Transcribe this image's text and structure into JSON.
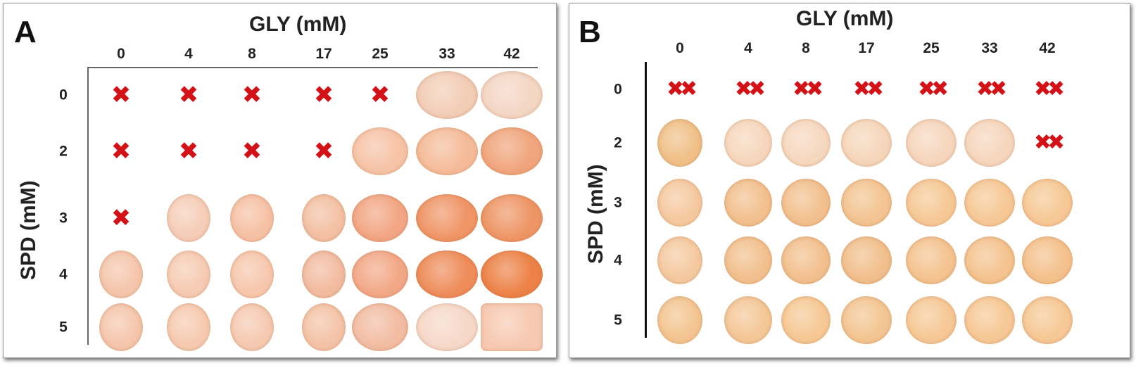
{
  "panels": [
    {
      "letter": "A",
      "x_title": "GLY (mM)",
      "y_title": "SPD (mM)",
      "gly": [
        "0",
        "4",
        "8",
        "17",
        "25",
        "33",
        "42"
      ],
      "spd": [
        "0",
        "2",
        "3",
        "4",
        "5"
      ],
      "mark_symbol": "✖",
      "cells": [
        [
          "x",
          "x",
          "x",
          "x",
          "x",
          "#f2cdb6",
          "#f4d6c4"
        ],
        [
          "x",
          "x",
          "x",
          "x",
          "#f6c3a6",
          "#f5bb99",
          "#f0a57c"
        ],
        [
          "x",
          "#f6cdb8",
          "#f6c1a4",
          "#f3c0a3",
          "#f2a684",
          "#ef9566",
          "#ee9565"
        ],
        [
          "#f5c6ac",
          "#f6cbb3",
          "#f7c7ad",
          "#f2bba0",
          "#f2a887",
          "#ee8c5a",
          "#ec8247"
        ],
        [
          "#f5c6ac",
          "#f6cab0",
          "#f6c9b1",
          "#f4c3a7",
          "#f2bca2",
          "#f6d8c8",
          "#f7c9b1"
        ]
      ],
      "colors": {
        "mark": "#d31217",
        "axis": "#666666"
      }
    },
    {
      "letter": "B",
      "x_title": "GLY (mM)",
      "y_title": "SPD (mM)",
      "gly": [
        "0",
        "4",
        "8",
        "17",
        "25",
        "33",
        "42"
      ],
      "spd": [
        "0",
        "2",
        "3",
        "4",
        "5"
      ],
      "mark_symbol": "✖✖",
      "cells": [
        [
          "x",
          "x",
          "x",
          "x",
          "x",
          "x",
          "x"
        ],
        [
          "#f0c088",
          "#f6d7bd",
          "#f6d8bf",
          "#f6d6bb",
          "#f6d6bd",
          "#f6d6bd",
          "x"
        ],
        [
          "#f5c9a0",
          "#f2c08e",
          "#f2c08e",
          "#f3c491",
          "#f6c895",
          "#f6c895",
          "#f6c895"
        ],
        [
          "#f5c9a0",
          "#f2c08e",
          "#f2c08e",
          "#f1bf8c",
          "#f4c38f",
          "#f4c38f",
          "#f4c18c"
        ],
        [
          "#f3c591",
          "#f4c797",
          "#f6c894",
          "#f3c592",
          "#f6c895",
          "#f6c895",
          "#f6c895"
        ]
      ],
      "colors": {
        "mark": "#d31217",
        "axis": "#111111"
      }
    }
  ]
}
